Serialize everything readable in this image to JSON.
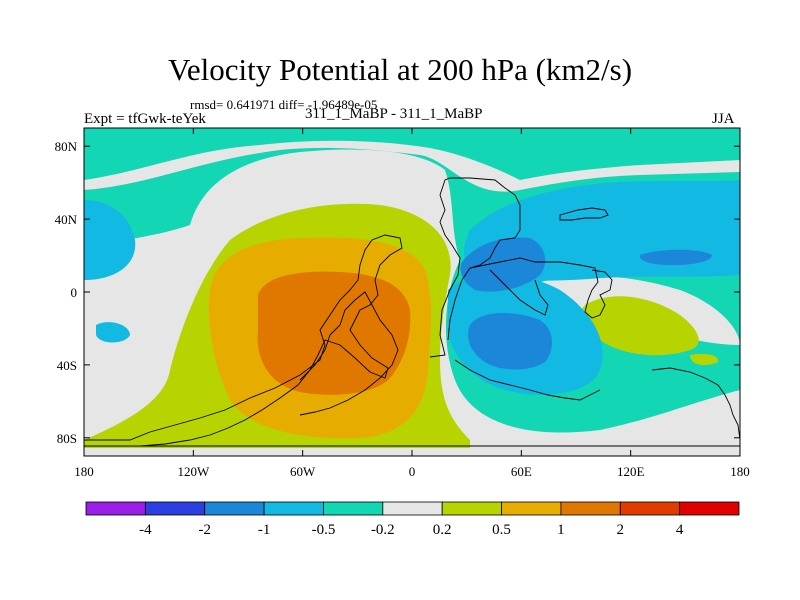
{
  "chart_data": {
    "type": "contour-map",
    "title": "Velocity Potential at 200 hPa (km2/s)",
    "stats_line": "rmsd= 0.641971 diff= -1.96489e-05",
    "left_label": "Expt = tfGwk-teYek",
    "center_label": "311_1_MaBP - 311_1_MaBP",
    "right_label": "JJA",
    "x_ticks": [
      "180",
      "120W",
      "60W",
      "0",
      "60E",
      "120E",
      "180"
    ],
    "x_tick_values": [
      -180,
      -120,
      -60,
      0,
      60,
      120,
      180
    ],
    "y_ticks": [
      "80N",
      "40N",
      "0",
      "40S",
      "80S"
    ],
    "y_tick_values": [
      80,
      40,
      0,
      -40,
      -80
    ],
    "xlim": [
      -180,
      180
    ],
    "ylim": [
      -90,
      90
    ],
    "colorbar": {
      "labels": [
        "-4",
        "-2",
        "-1",
        "-0.5",
        "-0.2",
        "0.2",
        "0.5",
        "1",
        "2",
        "4"
      ],
      "colors": [
        "#9a1ee6",
        "#2b3ee0",
        "#1c86d8",
        "#12b9e2",
        "#12d6b4",
        "#e6e6e6",
        "#b8d400",
        "#e6ac00",
        "#e07800",
        "#e03c00",
        "#e00000"
      ]
    },
    "fill_colors": {
      "neg_0p2_0p5": "#12d6b4",
      "neg_0p5_1": "#12b9e2",
      "neg_1_2": "#1c86d8",
      "neutral": "#e6e6e6",
      "pos_0p2_0p5": "#b8d400",
      "pos_0p5_1": "#e6ac00",
      "pos_1_2": "#e07800",
      "coast": "#000000"
    }
  }
}
